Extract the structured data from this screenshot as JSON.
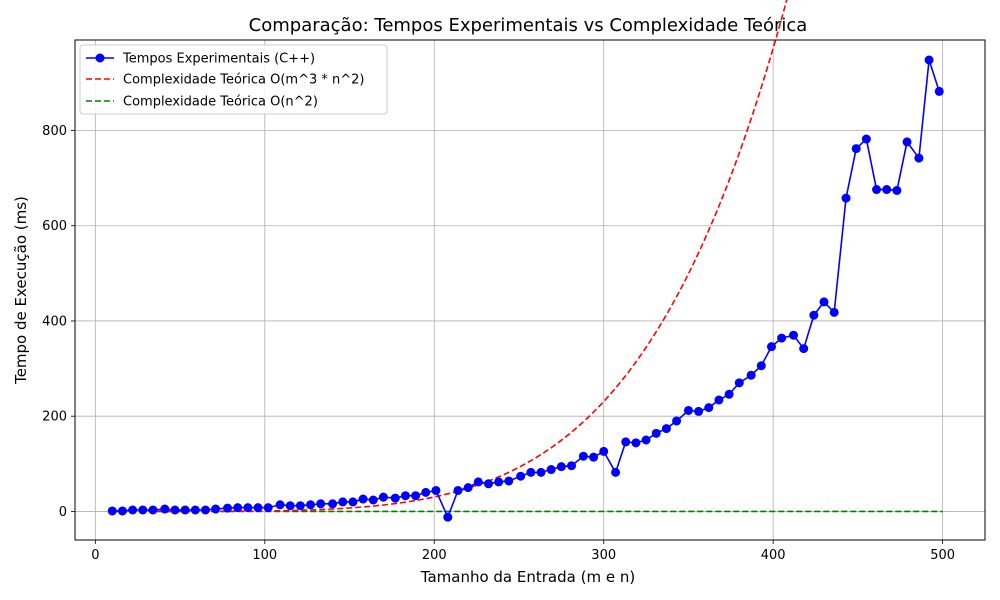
{
  "chart_data": {
    "type": "line",
    "title": "Comparação: Tempos Experimentais vs Complexidade Teórica",
    "xlabel": "Tamanho da Entrada (m e n)",
    "ylabel": "Tempo de Execução (ms)",
    "xlim": [
      -12,
      525
    ],
    "ylim": [
      -60,
      990
    ],
    "xticks": [
      0,
      100,
      200,
      300,
      400,
      500
    ],
    "yticks": [
      0,
      200,
      400,
      600,
      800
    ],
    "grid": true,
    "legend_position": "top-left",
    "series": [
      {
        "name": "Tempos Experimentais (C++)",
        "style": "line-markers",
        "color": "#0000ff",
        "x": [
          10,
          16,
          22,
          28,
          34,
          41,
          47,
          53,
          59,
          65,
          71,
          78,
          84,
          90,
          96,
          102,
          109,
          115,
          121,
          127,
          133,
          140,
          146,
          152,
          158,
          164,
          170,
          177,
          183,
          189,
          195,
          201,
          208,
          214,
          220,
          226,
          232,
          238,
          244,
          251,
          257,
          263,
          269,
          275,
          281,
          288,
          294,
          300,
          307,
          313,
          319,
          325,
          331,
          337,
          343,
          350,
          356,
          362,
          368,
          374,
          380,
          387,
          393,
          399,
          405,
          412,
          418,
          424,
          430,
          436,
          443,
          449,
          455,
          461,
          467,
          473,
          479,
          486,
          492,
          498
        ],
        "y": [
          1,
          1,
          3,
          3,
          3,
          5,
          3,
          3,
          3,
          3,
          5,
          7,
          8,
          8,
          8,
          8,
          14,
          12,
          12,
          14,
          16,
          16,
          20,
          20,
          26,
          24,
          30,
          28,
          33,
          33,
          40,
          44,
          -12,
          44,
          50,
          62,
          58,
          62,
          64,
          74,
          82,
          82,
          88,
          94,
          96,
          116,
          114,
          126,
          82,
          146,
          144,
          150,
          164,
          174,
          190,
          212,
          210,
          218,
          234,
          246,
          270,
          286,
          306,
          346,
          364,
          370,
          342,
          412,
          440,
          418,
          658,
          762,
          782,
          676,
          676,
          674,
          776,
          742,
          948,
          882
        ]
      },
      {
        "name": "Complexidade Teórica O(m^3 * n^2)",
        "style": "dashed",
        "color": "#ff0000",
        "formula": "9.5e-11 * x^5",
        "x_range": [
          10,
          500
        ]
      },
      {
        "name": "Complexidade Teórica O(n^2)",
        "style": "dashed",
        "color": "#008000",
        "formula": "near zero",
        "x_range": [
          10,
          500
        ]
      }
    ]
  }
}
